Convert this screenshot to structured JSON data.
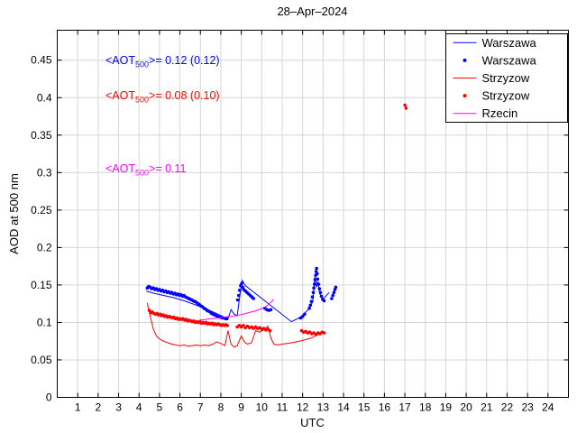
{
  "title": "28–Apr–2024",
  "annotations": [
    {
      "prefix": "<AOT",
      "sub": "500",
      "rest": ">= 0.12 (0.12)",
      "color": "#0000ff"
    },
    {
      "prefix": "<AOT",
      "sub": "500",
      "rest": ">= 0.08 (0.10)",
      "color": "#ff0000"
    },
    {
      "prefix": "<AOT",
      "sub": "500",
      "rest": ">= 0.11",
      "color": "#ff00ff"
    }
  ],
  "chart_data": {
    "type": "line",
    "title": "28–Apr–2024",
    "xlabel": "UTC",
    "ylabel": "AOD at 500 nm",
    "xlim": [
      0,
      25
    ],
    "ylim": [
      0,
      0.49
    ],
    "grid": true,
    "grid_color": "#d6d6d6",
    "x_ticks": [
      1,
      2,
      3,
      4,
      5,
      6,
      7,
      8,
      9,
      10,
      11,
      12,
      13,
      14,
      15,
      16,
      17,
      18,
      19,
      20,
      21,
      22,
      23,
      24
    ],
    "x_tick_labels": [
      "1",
      "2",
      "3",
      "4",
      "5",
      "6",
      "7",
      "8",
      "9",
      "10",
      "11",
      "12",
      "13",
      "14",
      "15",
      "16",
      "17",
      "18",
      "19",
      "20",
      "21",
      "22",
      "23",
      "24"
    ],
    "y_ticks": [
      0,
      0.05,
      0.1,
      0.15,
      0.2,
      0.25,
      0.3,
      0.35,
      0.4,
      0.45
    ],
    "y_tick_labels": [
      "0",
      "0.05",
      "0.1",
      "0.15",
      "0.2",
      "0.25",
      "0.3",
      "0.35",
      "0.4",
      "0.45"
    ],
    "legend": [
      {
        "label": "Warszawa",
        "color": "#0000ff",
        "symbol": "line"
      },
      {
        "label": "Warszawa",
        "color": "#0000ff",
        "symbol": "dot"
      },
      {
        "label": "Strzyzow",
        "color": "#ff0000",
        "symbol": "line"
      },
      {
        "label": "Strzyzow",
        "color": "#ff0000",
        "symbol": "dot"
      },
      {
        "label": "Rzecin",
        "color": "#ff00ff",
        "symbol": "line"
      }
    ],
    "legend_position": "top-right",
    "series": [
      {
        "name": "Warszawa-line",
        "style": "line",
        "color": "#0000ff",
        "points": [
          [
            4.35,
            0.142
          ],
          [
            4.7,
            0.139
          ],
          [
            5.2,
            0.136
          ],
          [
            5.7,
            0.133
          ],
          [
            6.2,
            0.129
          ],
          [
            6.7,
            0.124
          ],
          [
            7.2,
            0.119
          ],
          [
            7.7,
            0.113
          ],
          [
            8.1,
            0.108
          ],
          [
            8.35,
            0.105
          ],
          [
            8.5,
            0.117
          ],
          [
            8.65,
            0.111
          ],
          [
            8.8,
            0.109
          ],
          [
            8.95,
            0.14
          ],
          [
            9.05,
            0.156
          ],
          [
            9.2,
            0.149
          ],
          [
            11.45,
            0.101
          ],
          [
            11.9,
            0.107
          ],
          [
            12.3,
            0.118
          ],
          [
            12.5,
            0.128
          ],
          [
            12.6,
            0.162
          ],
          [
            12.68,
            0.147
          ],
          [
            12.73,
            0.155
          ],
          [
            12.85,
            0.138
          ],
          [
            13.0,
            0.131
          ],
          [
            13.3,
            0.14
          ]
        ]
      },
      {
        "name": "Warszawa-dots",
        "style": "scatter",
        "color": "#0000ff",
        "points": [
          [
            4.4,
            0.146
          ],
          [
            4.47,
            0.148
          ],
          [
            4.55,
            0.147
          ],
          [
            4.62,
            0.145
          ],
          [
            4.7,
            0.146
          ],
          [
            4.78,
            0.144
          ],
          [
            4.85,
            0.145
          ],
          [
            4.93,
            0.143
          ],
          [
            5.0,
            0.144
          ],
          [
            5.08,
            0.142
          ],
          [
            5.15,
            0.143
          ],
          [
            5.23,
            0.141
          ],
          [
            5.3,
            0.142
          ],
          [
            5.38,
            0.14
          ],
          [
            5.45,
            0.141
          ],
          [
            5.53,
            0.139
          ],
          [
            5.6,
            0.14
          ],
          [
            5.68,
            0.138
          ],
          [
            5.75,
            0.139
          ],
          [
            5.83,
            0.137
          ],
          [
            5.9,
            0.138
          ],
          [
            5.98,
            0.136
          ],
          [
            6.05,
            0.137
          ],
          [
            6.13,
            0.135
          ],
          [
            6.2,
            0.136
          ],
          [
            6.28,
            0.134
          ],
          [
            6.35,
            0.133
          ],
          [
            6.43,
            0.132
          ],
          [
            6.5,
            0.131
          ],
          [
            6.58,
            0.13
          ],
          [
            6.65,
            0.129
          ],
          [
            6.73,
            0.128
          ],
          [
            6.8,
            0.127
          ],
          [
            6.88,
            0.125
          ],
          [
            6.95,
            0.124
          ],
          [
            7.03,
            0.122
          ],
          [
            7.1,
            0.121
          ],
          [
            7.18,
            0.119
          ],
          [
            7.25,
            0.118
          ],
          [
            7.33,
            0.116
          ],
          [
            7.4,
            0.115
          ],
          [
            7.48,
            0.114
          ],
          [
            7.55,
            0.112
          ],
          [
            7.63,
            0.111
          ],
          [
            7.7,
            0.11
          ],
          [
            7.78,
            0.109
          ],
          [
            7.85,
            0.108
          ],
          [
            7.93,
            0.107
          ],
          [
            8.0,
            0.107
          ],
          [
            8.08,
            0.106
          ],
          [
            8.15,
            0.106
          ],
          [
            8.23,
            0.105
          ],
          [
            8.3,
            0.105
          ],
          [
            8.82,
            0.13
          ],
          [
            8.87,
            0.136
          ],
          [
            8.92,
            0.143
          ],
          [
            8.97,
            0.149
          ],
          [
            9.02,
            0.152
          ],
          [
            9.07,
            0.147
          ],
          [
            9.12,
            0.144
          ],
          [
            9.2,
            0.142
          ],
          [
            9.28,
            0.14
          ],
          [
            9.36,
            0.138
          ],
          [
            9.44,
            0.136
          ],
          [
            9.52,
            0.134
          ],
          [
            9.6,
            0.132
          ],
          [
            10.15,
            0.119
          ],
          [
            10.25,
            0.117
          ],
          [
            10.35,
            0.116
          ],
          [
            10.45,
            0.117
          ],
          [
            11.9,
            0.106
          ],
          [
            12.0,
            0.108
          ],
          [
            12.1,
            0.111
          ],
          [
            12.33,
            0.119
          ],
          [
            12.38,
            0.123
          ],
          [
            12.43,
            0.128
          ],
          [
            12.48,
            0.134
          ],
          [
            12.52,
            0.14
          ],
          [
            12.55,
            0.146
          ],
          [
            12.58,
            0.151
          ],
          [
            12.61,
            0.157
          ],
          [
            12.64,
            0.163
          ],
          [
            12.66,
            0.168
          ],
          [
            12.68,
            0.172
          ],
          [
            12.71,
            0.165
          ],
          [
            12.74,
            0.158
          ],
          [
            12.78,
            0.151
          ],
          [
            12.82,
            0.145
          ],
          [
            12.87,
            0.14
          ],
          [
            12.92,
            0.135
          ],
          [
            12.98,
            0.131
          ],
          [
            13.05,
            0.129
          ],
          [
            13.42,
            0.132
          ],
          [
            13.48,
            0.136
          ],
          [
            13.53,
            0.14
          ],
          [
            13.58,
            0.144
          ],
          [
            13.62,
            0.147
          ]
        ]
      },
      {
        "name": "Strzyzow-line",
        "style": "line",
        "color": "#ff0000",
        "points": [
          [
            4.4,
            0.126
          ],
          [
            4.55,
            0.108
          ],
          [
            4.7,
            0.091
          ],
          [
            4.85,
            0.082
          ],
          [
            5.0,
            0.078
          ],
          [
            5.2,
            0.075
          ],
          [
            5.4,
            0.073
          ],
          [
            5.6,
            0.071
          ],
          [
            5.8,
            0.07
          ],
          [
            6.0,
            0.069
          ],
          [
            6.2,
            0.07
          ],
          [
            6.4,
            0.068
          ],
          [
            6.6,
            0.069
          ],
          [
            6.8,
            0.07
          ],
          [
            7.0,
            0.069
          ],
          [
            7.2,
            0.07
          ],
          [
            7.4,
            0.069
          ],
          [
            7.6,
            0.071
          ],
          [
            7.8,
            0.074
          ],
          [
            8.0,
            0.072
          ],
          [
            8.2,
            0.069
          ],
          [
            8.35,
            0.089
          ],
          [
            8.5,
            0.071
          ],
          [
            8.65,
            0.067
          ],
          [
            8.8,
            0.069
          ],
          [
            9.0,
            0.082
          ],
          [
            9.15,
            0.074
          ],
          [
            9.3,
            0.071
          ],
          [
            9.5,
            0.073
          ],
          [
            9.7,
            0.089
          ],
          [
            9.9,
            0.087
          ],
          [
            10.1,
            0.09
          ],
          [
            10.3,
            0.095
          ],
          [
            10.45,
            0.079
          ],
          [
            10.6,
            0.071
          ],
          [
            10.8,
            0.07
          ],
          [
            11.0,
            0.071
          ],
          [
            11.5,
            0.073
          ],
          [
            12.0,
            0.076
          ],
          [
            12.4,
            0.079
          ],
          [
            12.7,
            0.083
          ],
          [
            13.0,
            0.088
          ]
        ]
      },
      {
        "name": "Strzyzow-dots",
        "style": "scatter",
        "color": "#ff0000",
        "points": [
          [
            4.5,
            0.116
          ],
          [
            4.58,
            0.113
          ],
          [
            4.65,
            0.114
          ],
          [
            4.73,
            0.112
          ],
          [
            4.8,
            0.111
          ],
          [
            4.88,
            0.112
          ],
          [
            4.95,
            0.11
          ],
          [
            5.03,
            0.111
          ],
          [
            5.1,
            0.109
          ],
          [
            5.18,
            0.11
          ],
          [
            5.25,
            0.108
          ],
          [
            5.33,
            0.109
          ],
          [
            5.4,
            0.107
          ],
          [
            5.48,
            0.108
          ],
          [
            5.55,
            0.107
          ],
          [
            5.63,
            0.106
          ],
          [
            5.7,
            0.107
          ],
          [
            5.78,
            0.105
          ],
          [
            5.85,
            0.106
          ],
          [
            5.93,
            0.104
          ],
          [
            6.0,
            0.105
          ],
          [
            6.08,
            0.104
          ],
          [
            6.15,
            0.105
          ],
          [
            6.23,
            0.103
          ],
          [
            6.3,
            0.104
          ],
          [
            6.38,
            0.102
          ],
          [
            6.45,
            0.103
          ],
          [
            6.53,
            0.102
          ],
          [
            6.6,
            0.101
          ],
          [
            6.68,
            0.102
          ],
          [
            6.75,
            0.1
          ],
          [
            6.83,
            0.101
          ],
          [
            6.9,
            0.1
          ],
          [
            6.98,
            0.101
          ],
          [
            7.05,
            0.099
          ],
          [
            7.13,
            0.1
          ],
          [
            7.2,
            0.099
          ],
          [
            7.28,
            0.1
          ],
          [
            7.35,
            0.098
          ],
          [
            7.43,
            0.099
          ],
          [
            7.5,
            0.098
          ],
          [
            7.58,
            0.099
          ],
          [
            7.65,
            0.097
          ],
          [
            7.73,
            0.098
          ],
          [
            7.8,
            0.097
          ],
          [
            7.88,
            0.098
          ],
          [
            7.95,
            0.097
          ],
          [
            8.03,
            0.096
          ],
          [
            8.1,
            0.097
          ],
          [
            8.18,
            0.096
          ],
          [
            8.25,
            0.097
          ],
          [
            8.32,
            0.096
          ],
          [
            8.8,
            0.094
          ],
          [
            8.9,
            0.096
          ],
          [
            9.0,
            0.094
          ],
          [
            9.1,
            0.096
          ],
          [
            9.2,
            0.093
          ],
          [
            9.3,
            0.095
          ],
          [
            9.4,
            0.093
          ],
          [
            9.5,
            0.094
          ],
          [
            9.6,
            0.092
          ],
          [
            9.7,
            0.094
          ],
          [
            9.8,
            0.092
          ],
          [
            9.9,
            0.093
          ],
          [
            10.0,
            0.091
          ],
          [
            10.1,
            0.092
          ],
          [
            10.2,
            0.09
          ],
          [
            10.3,
            0.091
          ],
          [
            10.4,
            0.089
          ],
          [
            11.95,
            0.089
          ],
          [
            12.05,
            0.087
          ],
          [
            12.15,
            0.088
          ],
          [
            12.25,
            0.086
          ],
          [
            12.35,
            0.087
          ],
          [
            12.45,
            0.085
          ],
          [
            12.55,
            0.086
          ],
          [
            12.65,
            0.084
          ],
          [
            12.75,
            0.086
          ],
          [
            12.85,
            0.085
          ],
          [
            12.95,
            0.087
          ],
          [
            13.05,
            0.086
          ],
          [
            17.0,
            0.39
          ],
          [
            17.06,
            0.386
          ]
        ]
      },
      {
        "name": "Rzecin-line",
        "style": "line",
        "color": "#ff00ff",
        "points": [
          [
            6.95,
            0.103
          ],
          [
            7.25,
            0.104
          ],
          [
            7.55,
            0.105
          ],
          [
            7.85,
            0.106
          ],
          [
            8.15,
            0.107
          ],
          [
            8.45,
            0.108
          ],
          [
            8.75,
            0.109
          ],
          [
            9.05,
            0.111
          ],
          [
            9.35,
            0.113
          ],
          [
            9.65,
            0.115
          ],
          [
            9.95,
            0.118
          ],
          [
            10.25,
            0.122
          ],
          [
            10.45,
            0.127
          ],
          [
            10.6,
            0.131
          ]
        ]
      }
    ]
  }
}
